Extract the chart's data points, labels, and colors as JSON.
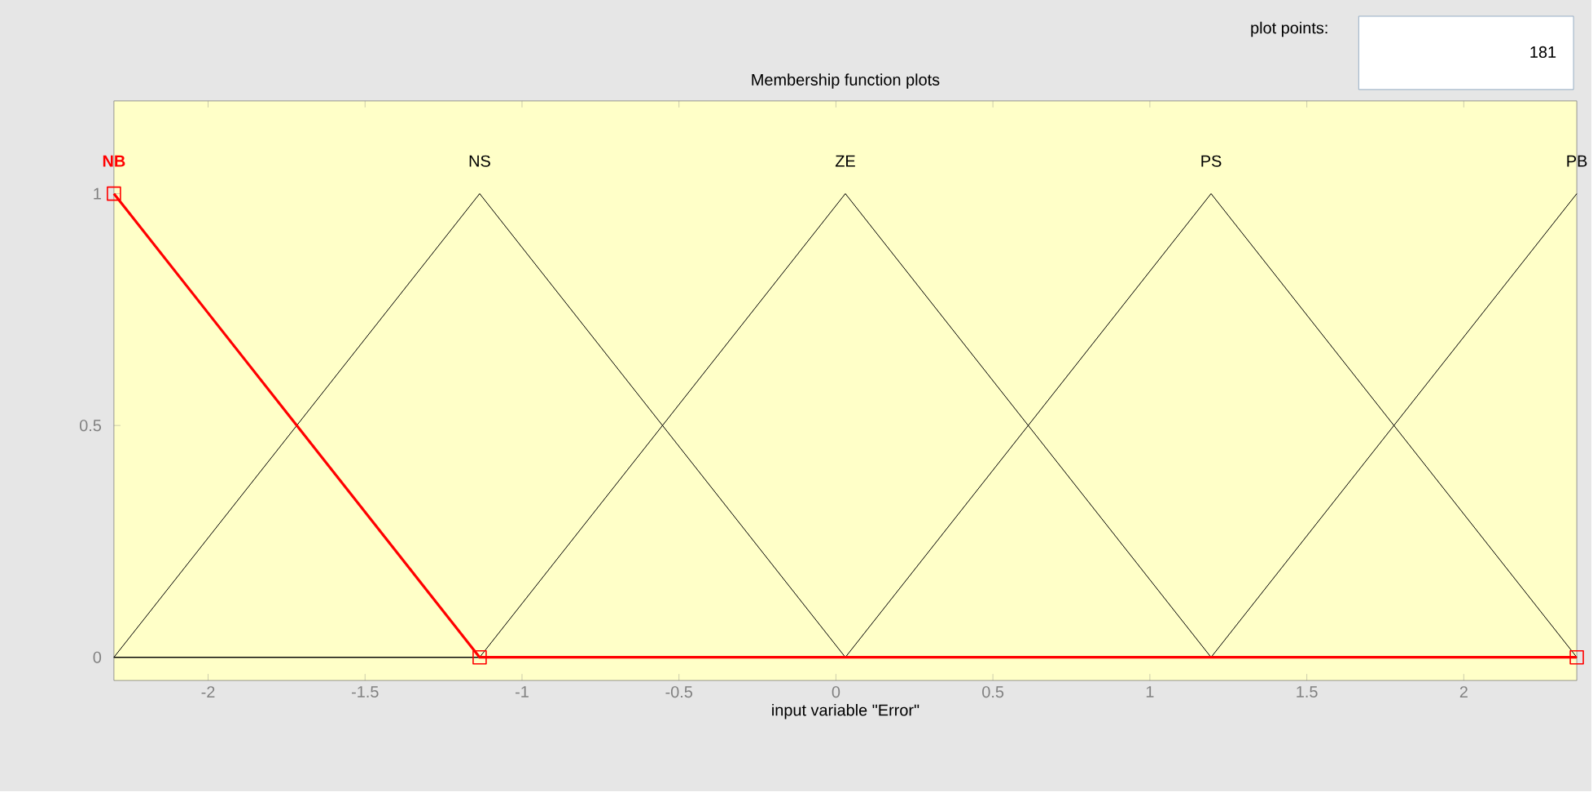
{
  "chart_data": {
    "type": "line",
    "title": "Membership function plots",
    "xlabel": "input variable \"Error\"",
    "annotations": [
      "plot points:",
      "181"
    ],
    "xlim": [
      -2.3,
      2.36
    ],
    "ylim": [
      -0.05,
      1.2
    ],
    "xticks": [
      -2,
      -1.5,
      -1,
      -0.5,
      0,
      0.5,
      1,
      1.5,
      2
    ],
    "yticks": [
      0,
      0.5,
      1
    ],
    "grid": false,
    "legend": false,
    "series": [
      {
        "name": "NS",
        "color": "#000000",
        "x": [
          -2.3,
          -1.135,
          0.03,
          2.36
        ],
        "values": [
          0,
          1,
          0,
          0
        ]
      },
      {
        "name": "ZE",
        "color": "#000000",
        "x": [
          -2.3,
          -1.135,
          0.03,
          1.195,
          2.36
        ],
        "values": [
          0,
          0,
          1,
          0,
          0
        ]
      },
      {
        "name": "PS",
        "color": "#000000",
        "x": [
          -2.3,
          0.03,
          1.195,
          2.36
        ],
        "values": [
          0,
          0,
          1,
          0
        ]
      },
      {
        "name": "PB",
        "color": "#000000",
        "x": [
          -2.3,
          1.195,
          2.36
        ],
        "values": [
          0,
          0,
          1
        ]
      },
      {
        "name": "NB",
        "color": "#ff0000",
        "x": [
          -2.3,
          -1.135,
          2.36
        ],
        "values": [
          1,
          0,
          0
        ],
        "marker": "square"
      }
    ]
  }
}
